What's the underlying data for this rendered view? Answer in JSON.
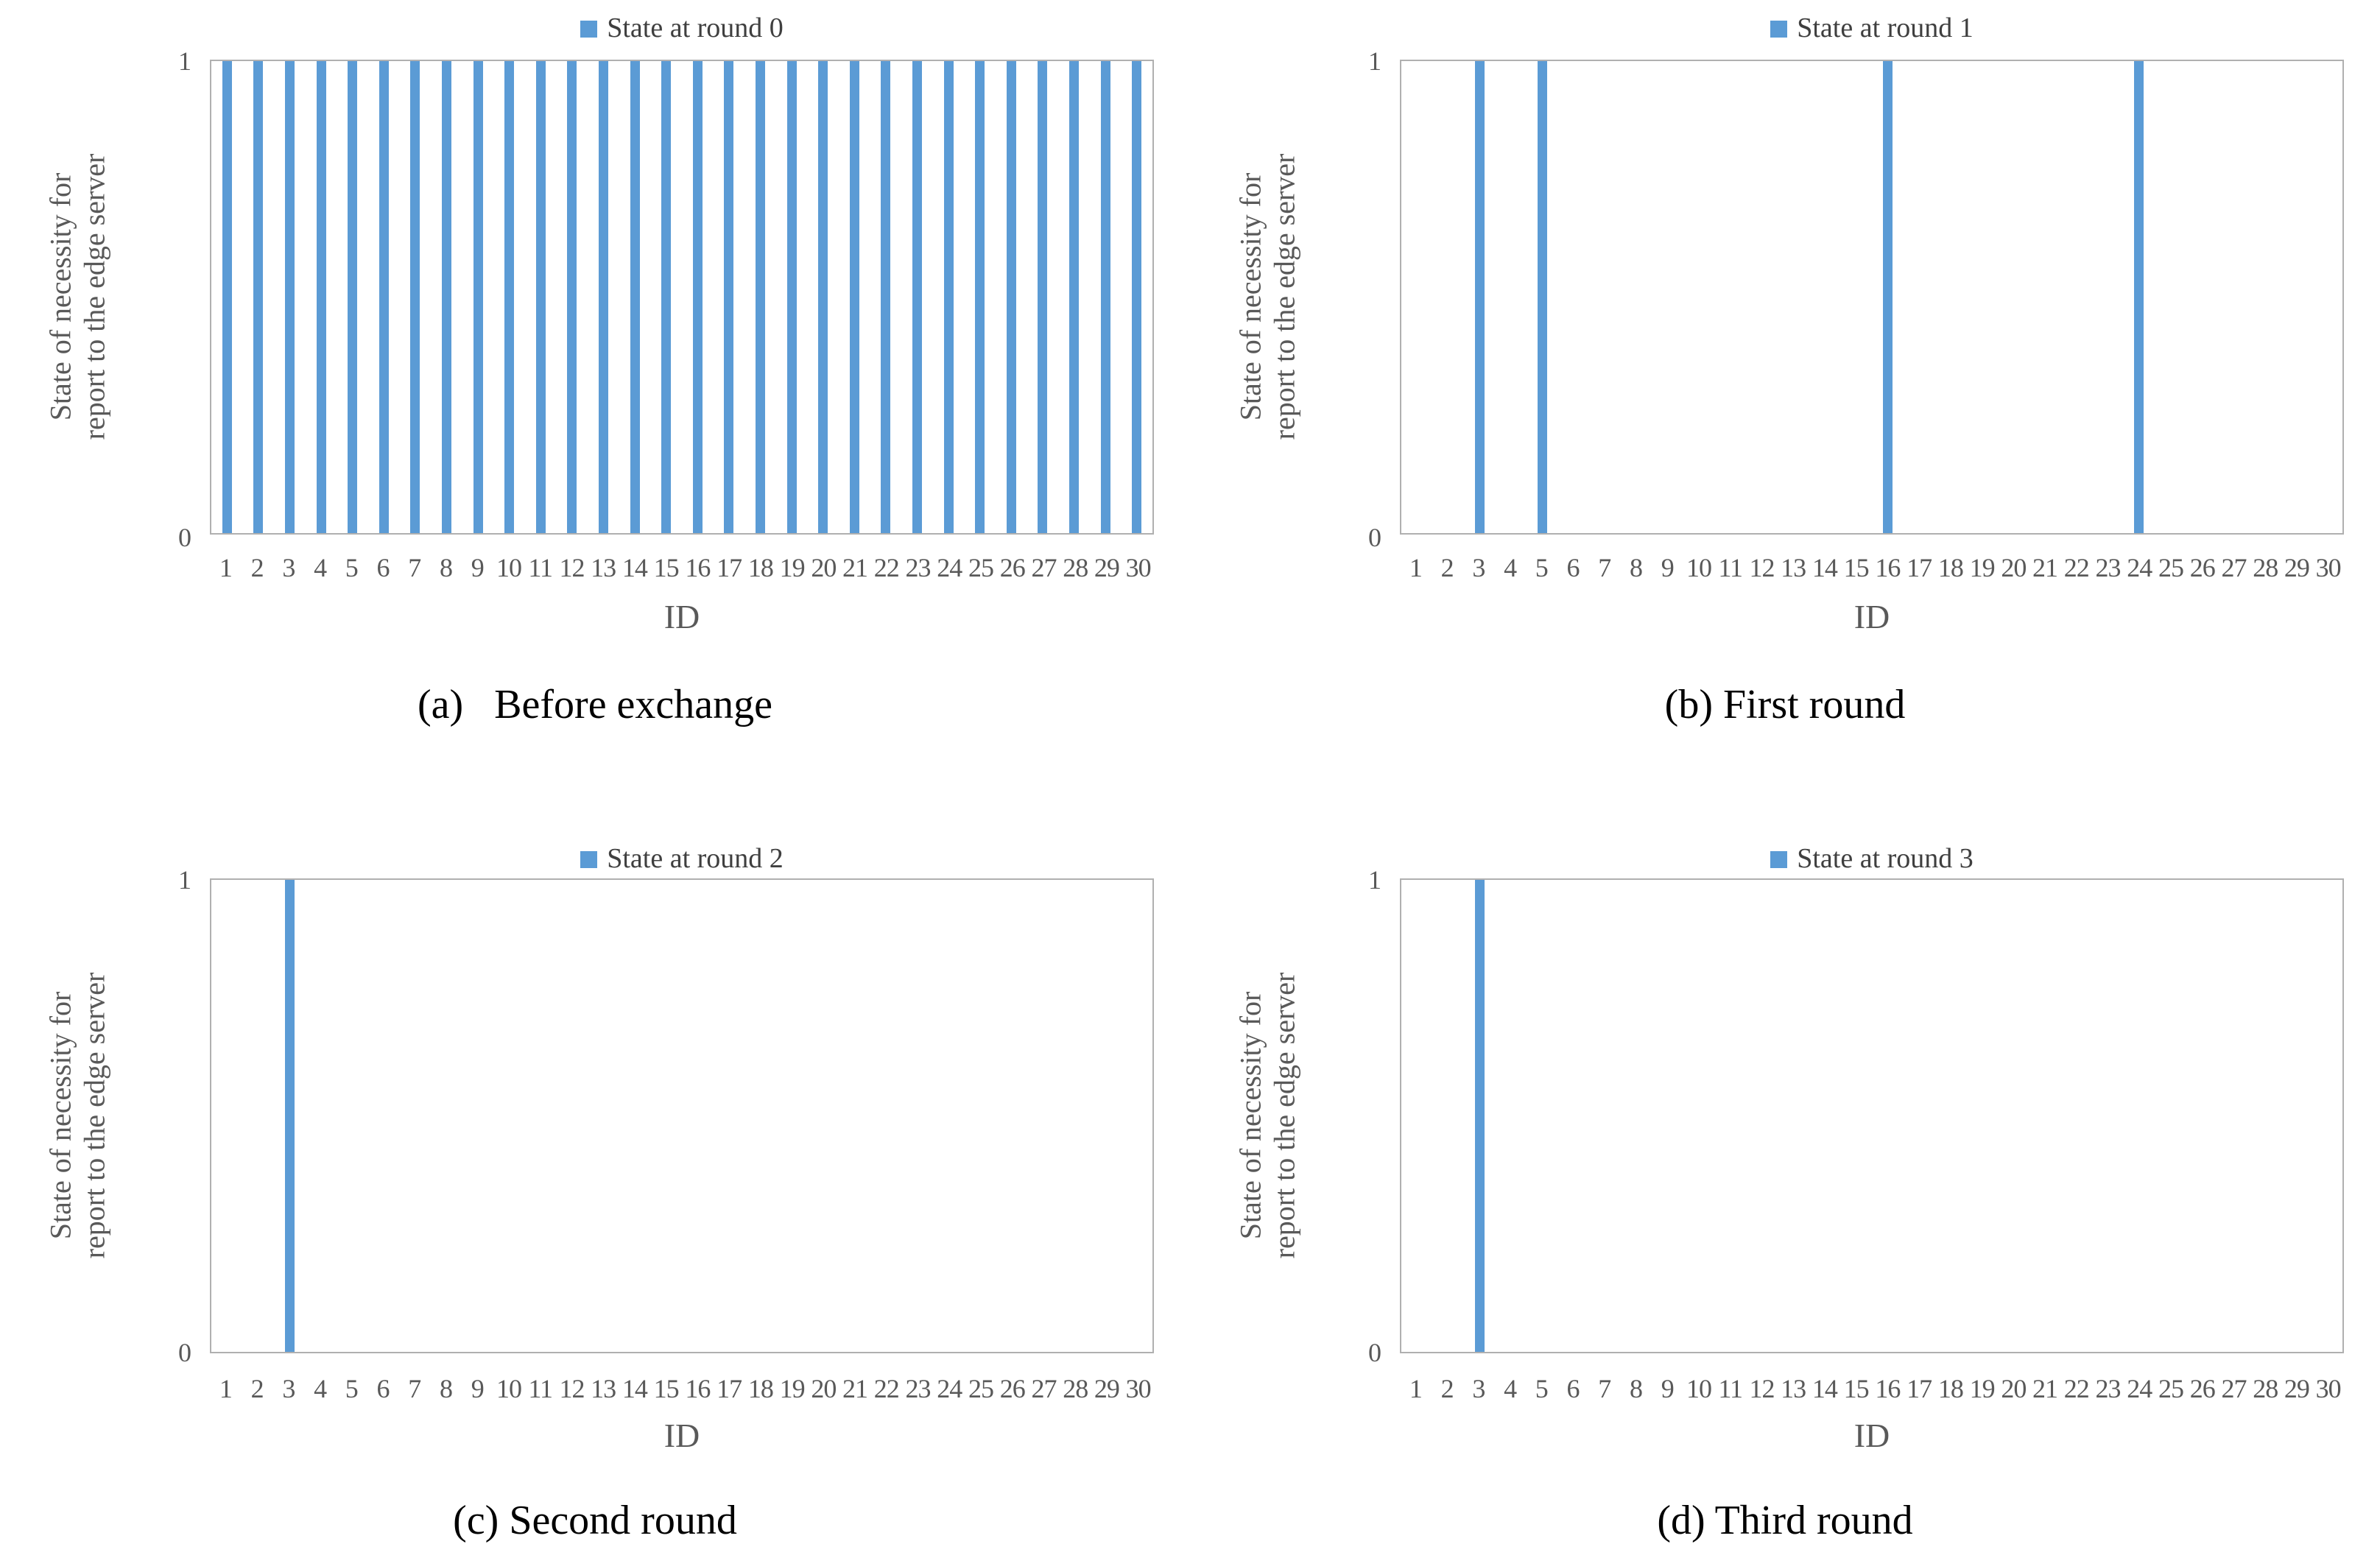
{
  "figure": {
    "accent_color": "#5B9BD5",
    "axis_text_color": "#595959",
    "legend_text_color": "#3F3F3F",
    "plot_border_color": "#B0B0B0"
  },
  "chart_data": [
    {
      "type": "bar",
      "legend": "State at round 0",
      "caption": "(a)   Before exchange",
      "xlabel": "ID",
      "ylabel_lines": [
        "State of necessity for",
        "report to the edge server"
      ],
      "ytick_labels": [
        "1",
        "0"
      ],
      "ylim": [
        0,
        1
      ],
      "legend_position": "top-center",
      "grid": false,
      "categories": [
        1,
        2,
        3,
        4,
        5,
        6,
        7,
        8,
        9,
        10,
        11,
        12,
        13,
        14,
        15,
        16,
        17,
        18,
        19,
        20,
        21,
        22,
        23,
        24,
        25,
        26,
        27,
        28,
        29,
        30
      ],
      "values": [
        1,
        1,
        1,
        1,
        1,
        1,
        1,
        1,
        1,
        1,
        1,
        1,
        1,
        1,
        1,
        1,
        1,
        1,
        1,
        1,
        1,
        1,
        1,
        1,
        1,
        1,
        1,
        1,
        1,
        1
      ]
    },
    {
      "type": "bar",
      "legend": "State at round 1",
      "caption": "(b) First round",
      "xlabel": "ID",
      "ylabel_lines": [
        "State of necessity for",
        "report to the edge server"
      ],
      "ytick_labels": [
        "1",
        "0"
      ],
      "ylim": [
        0,
        1
      ],
      "legend_position": "top-center",
      "grid": false,
      "categories": [
        1,
        2,
        3,
        4,
        5,
        6,
        7,
        8,
        9,
        10,
        11,
        12,
        13,
        14,
        15,
        16,
        17,
        18,
        19,
        20,
        21,
        22,
        23,
        24,
        25,
        26,
        27,
        28,
        29,
        30
      ],
      "values": [
        0,
        0,
        1,
        0,
        1,
        0,
        0,
        0,
        0,
        0,
        0,
        0,
        0,
        0,
        0,
        1,
        0,
        0,
        0,
        0,
        0,
        0,
        0,
        1,
        0,
        0,
        0,
        0,
        0,
        0
      ]
    },
    {
      "type": "bar",
      "legend": "State at round 2",
      "caption": "(c) Second round",
      "xlabel": "ID",
      "ylabel_lines": [
        "State of necessity for",
        "report to the edge server"
      ],
      "ytick_labels": [
        "1",
        "0"
      ],
      "ylim": [
        0,
        1
      ],
      "legend_position": "top-center",
      "grid": false,
      "categories": [
        1,
        2,
        3,
        4,
        5,
        6,
        7,
        8,
        9,
        10,
        11,
        12,
        13,
        14,
        15,
        16,
        17,
        18,
        19,
        20,
        21,
        22,
        23,
        24,
        25,
        26,
        27,
        28,
        29,
        30
      ],
      "values": [
        0,
        0,
        1,
        0,
        0,
        0,
        0,
        0,
        0,
        0,
        0,
        0,
        0,
        0,
        0,
        0,
        0,
        0,
        0,
        0,
        0,
        0,
        0,
        0,
        0,
        0,
        0,
        0,
        0,
        0
      ]
    },
    {
      "type": "bar",
      "legend": "State at round 3",
      "caption": "(d) Third round",
      "xlabel": "ID",
      "ylabel_lines": [
        "State of necessity for",
        "report to the edge server"
      ],
      "ytick_labels": [
        "1",
        "0"
      ],
      "ylim": [
        0,
        1
      ],
      "legend_position": "top-center",
      "grid": false,
      "categories": [
        1,
        2,
        3,
        4,
        5,
        6,
        7,
        8,
        9,
        10,
        11,
        12,
        13,
        14,
        15,
        16,
        17,
        18,
        19,
        20,
        21,
        22,
        23,
        24,
        25,
        26,
        27,
        28,
        29,
        30
      ],
      "values": [
        0,
        0,
        1,
        0,
        0,
        0,
        0,
        0,
        0,
        0,
        0,
        0,
        0,
        0,
        0,
        0,
        0,
        0,
        0,
        0,
        0,
        0,
        0,
        0,
        0,
        0,
        0,
        0,
        0,
        0
      ]
    }
  ]
}
